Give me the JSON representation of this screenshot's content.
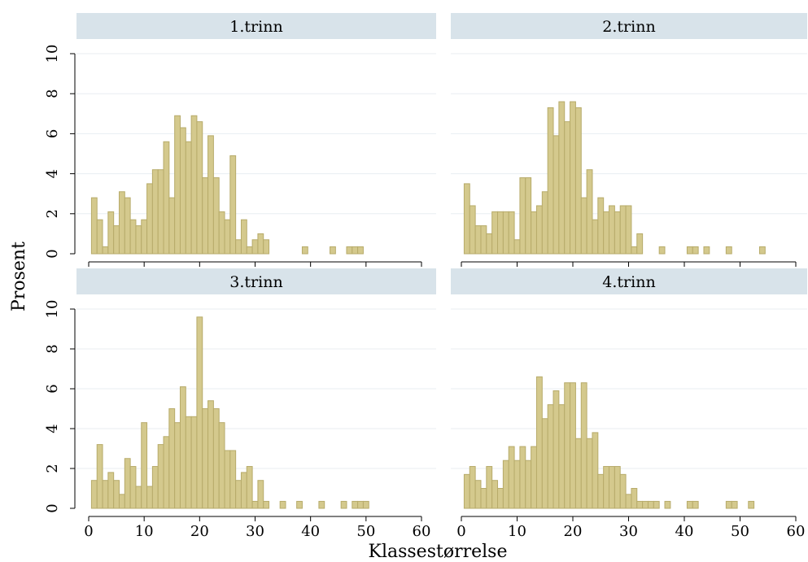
{
  "chart_data": {
    "type": "bar",
    "ylabel": "Prosent",
    "xlabel": "Klassestørrelse",
    "xlim": [
      0,
      60
    ],
    "ylim": [
      0,
      10
    ],
    "xticks": [
      0,
      10,
      20,
      30,
      40,
      50,
      60
    ],
    "yticks": [
      0,
      2,
      4,
      6,
      8,
      10
    ],
    "bar_color": "#d4c98d",
    "strip_color": "#d8e3ea",
    "grid": true,
    "panels": [
      {
        "title": "1.trinn",
        "x": [
          1,
          2,
          3,
          4,
          5,
          6,
          7,
          8,
          9,
          10,
          11,
          12,
          13,
          14,
          15,
          16,
          17,
          18,
          19,
          20,
          21,
          22,
          23,
          24,
          25,
          26,
          27,
          28,
          29,
          30,
          31,
          32,
          39,
          44,
          47,
          48,
          49
        ],
        "y": [
          2.8,
          1.7,
          0.35,
          2.1,
          1.4,
          3.1,
          2.8,
          1.7,
          1.4,
          1.7,
          3.5,
          4.2,
          4.2,
          5.6,
          2.8,
          6.9,
          6.3,
          5.6,
          6.9,
          6.6,
          3.8,
          5.9,
          3.8,
          2.1,
          1.7,
          4.9,
          0.7,
          1.7,
          0.35,
          0.7,
          1.0,
          0.7,
          0.35,
          0.35,
          0.35,
          0.35,
          0.35
        ]
      },
      {
        "title": "2.trinn",
        "x": [
          1,
          2,
          3,
          4,
          5,
          6,
          7,
          8,
          9,
          10,
          11,
          12,
          13,
          14,
          15,
          16,
          17,
          18,
          19,
          20,
          21,
          22,
          23,
          24,
          25,
          26,
          27,
          28,
          29,
          30,
          31,
          32,
          36,
          41,
          42,
          44,
          48,
          54
        ],
        "y": [
          3.5,
          2.4,
          1.4,
          1.4,
          1.0,
          2.1,
          2.1,
          2.1,
          2.1,
          0.7,
          3.8,
          3.8,
          2.1,
          2.4,
          3.1,
          7.3,
          5.9,
          7.6,
          6.6,
          7.6,
          7.3,
          2.8,
          4.2,
          1.7,
          2.8,
          2.1,
          2.4,
          2.1,
          2.4,
          2.4,
          0.35,
          1.0,
          0.35,
          0.35,
          0.35,
          0.35,
          0.35,
          0.35
        ]
      },
      {
        "title": "3.trinn",
        "x": [
          1,
          2,
          3,
          4,
          5,
          6,
          7,
          8,
          9,
          10,
          11,
          12,
          13,
          14,
          15,
          16,
          17,
          18,
          19,
          20,
          21,
          22,
          23,
          24,
          25,
          26,
          27,
          28,
          29,
          30,
          31,
          32,
          35,
          38,
          42,
          46,
          48,
          49,
          50
        ],
        "y": [
          1.4,
          3.2,
          1.4,
          1.8,
          1.4,
          0.7,
          2.5,
          2.1,
          1.1,
          4.3,
          1.1,
          2.1,
          3.2,
          3.6,
          5.0,
          4.3,
          6.1,
          4.6,
          4.6,
          9.6,
          5.0,
          5.4,
          5.0,
          4.3,
          2.9,
          2.9,
          1.4,
          1.8,
          2.1,
          0.35,
          1.4,
          0.35,
          0.35,
          0.35,
          0.35,
          0.35,
          0.35,
          0.35,
          0.35
        ]
      },
      {
        "title": "4.trinn",
        "x": [
          1,
          2,
          3,
          4,
          5,
          6,
          7,
          8,
          9,
          10,
          11,
          12,
          13,
          14,
          15,
          16,
          17,
          18,
          19,
          20,
          21,
          22,
          23,
          24,
          25,
          26,
          27,
          28,
          29,
          30,
          31,
          32,
          33,
          34,
          35,
          37,
          41,
          42,
          48,
          49,
          52
        ],
        "y": [
          1.7,
          2.1,
          1.4,
          1.0,
          2.1,
          1.4,
          1.0,
          2.4,
          3.1,
          2.4,
          3.1,
          2.4,
          3.1,
          6.6,
          4.5,
          5.2,
          5.9,
          5.2,
          6.3,
          6.3,
          3.5,
          6.3,
          3.5,
          3.8,
          1.7,
          2.1,
          2.1,
          2.1,
          1.7,
          0.7,
          1.0,
          0.35,
          0.35,
          0.35,
          0.35,
          0.35,
          0.35,
          0.35,
          0.35,
          0.35,
          0.35
        ]
      }
    ]
  }
}
